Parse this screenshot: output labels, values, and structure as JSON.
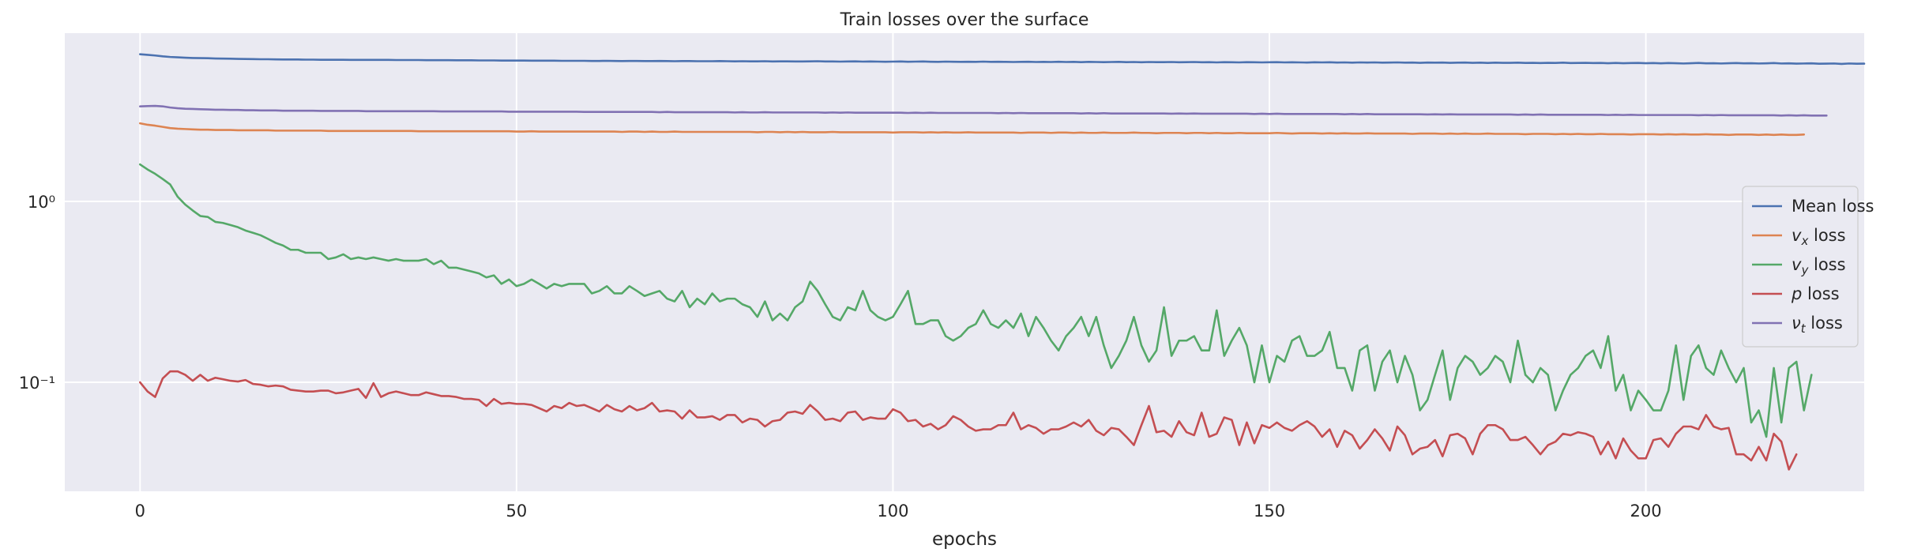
{
  "chart_data": {
    "type": "line",
    "title": "Train losses over the surface",
    "xlabel": "epochs",
    "ylabel": "",
    "xlim": [
      -10,
      229
    ],
    "ylim": [
      0.025,
      8.5
    ],
    "yscale": "log",
    "grid": true,
    "legend_position": "center-right",
    "x_ticks": [
      {
        "value": 0,
        "label": "0"
      },
      {
        "value": 50,
        "label": "50"
      },
      {
        "value": 100,
        "label": "100"
      },
      {
        "value": 150,
        "label": "150"
      },
      {
        "value": 200,
        "label": "200"
      }
    ],
    "y_ticks": [
      {
        "value": 0.1,
        "label": "10⁻¹"
      },
      {
        "value": 1,
        "label": "10⁰"
      }
    ],
    "series": [
      {
        "name": "Mean loss",
        "color": "#4c72b0",
        "values": [
          6.5,
          6.45,
          6.4,
          6.33,
          6.28,
          6.25,
          6.22,
          6.2,
          6.19,
          6.18,
          6.16,
          6.15,
          6.14,
          6.13,
          6.12,
          6.11,
          6.1,
          6.1,
          6.09,
          6.08,
          6.08,
          6.08,
          6.07,
          6.07,
          6.06,
          6.06,
          6.06,
          6.06,
          6.05,
          6.05,
          6.05,
          6.05,
          6.05,
          6.05,
          6.04,
          6.04,
          6.04,
          6.04,
          6.03,
          6.03,
          6.03,
          6.03,
          6.02,
          6.02,
          6.02,
          6.01,
          6.01,
          6.01,
          6.0,
          6.0,
          6.0,
          6.0,
          5.99,
          5.99,
          5.99,
          5.99,
          5.98,
          5.98,
          5.98,
          5.98,
          5.97,
          5.97,
          5.98,
          5.97,
          5.96,
          5.97,
          5.97,
          5.96,
          5.96,
          5.97,
          5.96,
          5.95,
          5.96,
          5.96,
          5.95,
          5.95,
          5.95,
          5.96,
          5.95,
          5.94,
          5.95,
          5.94,
          5.94,
          5.95,
          5.93,
          5.94,
          5.94,
          5.93,
          5.93,
          5.94,
          5.95,
          5.93,
          5.93,
          5.92,
          5.93,
          5.94,
          5.92,
          5.93,
          5.92,
          5.91,
          5.92,
          5.93,
          5.91,
          5.92,
          5.93,
          5.91,
          5.9,
          5.92,
          5.91,
          5.9,
          5.91,
          5.9,
          5.92,
          5.9,
          5.91,
          5.9,
          5.89,
          5.9,
          5.91,
          5.89,
          5.9,
          5.89,
          5.91,
          5.89,
          5.9,
          5.88,
          5.9,
          5.89,
          5.88,
          5.89,
          5.9,
          5.88,
          5.89,
          5.87,
          5.89,
          5.88,
          5.88,
          5.89,
          5.87,
          5.88,
          5.89,
          5.87,
          5.88,
          5.86,
          5.88,
          5.87,
          5.86,
          5.88,
          5.87,
          5.86,
          5.87,
          5.88,
          5.86,
          5.87,
          5.86,
          5.85,
          5.87,
          5.86,
          5.87,
          5.85,
          5.86,
          5.84,
          5.86,
          5.85,
          5.86,
          5.84,
          5.85,
          5.86,
          5.84,
          5.85,
          5.83,
          5.85,
          5.84,
          5.85,
          5.83,
          5.84,
          5.85,
          5.83,
          5.84,
          5.82,
          5.84,
          5.83,
          5.83,
          5.84,
          5.82,
          5.83,
          5.81,
          5.83,
          5.82,
          5.84,
          5.81,
          5.82,
          5.83,
          5.81,
          5.82,
          5.8,
          5.82,
          5.8,
          5.81,
          5.82,
          5.8,
          5.81,
          5.79,
          5.81,
          5.8,
          5.78,
          5.8,
          5.82,
          5.79,
          5.8,
          5.78,
          5.8,
          5.81,
          5.79,
          5.8,
          5.78,
          5.79,
          5.81,
          5.78,
          5.79,
          5.77,
          5.78,
          5.79,
          5.76,
          5.77,
          5.78,
          5.75,
          5.78,
          5.76,
          5.77
        ]
      },
      {
        "name": "v_x loss",
        "label_main": "v",
        "label_sub": "x",
        "label_suffix": " loss",
        "color": "#dd8452",
        "values": [
          2.7,
          2.65,
          2.62,
          2.58,
          2.54,
          2.52,
          2.51,
          2.5,
          2.49,
          2.49,
          2.48,
          2.48,
          2.48,
          2.47,
          2.47,
          2.47,
          2.47,
          2.47,
          2.46,
          2.46,
          2.46,
          2.46,
          2.46,
          2.46,
          2.46,
          2.45,
          2.45,
          2.45,
          2.45,
          2.45,
          2.45,
          2.45,
          2.45,
          2.45,
          2.45,
          2.45,
          2.45,
          2.44,
          2.44,
          2.44,
          2.44,
          2.44,
          2.44,
          2.44,
          2.44,
          2.44,
          2.44,
          2.44,
          2.44,
          2.44,
          2.43,
          2.43,
          2.44,
          2.43,
          2.43,
          2.43,
          2.43,
          2.43,
          2.43,
          2.43,
          2.43,
          2.43,
          2.43,
          2.43,
          2.42,
          2.43,
          2.43,
          2.42,
          2.43,
          2.42,
          2.42,
          2.43,
          2.42,
          2.42,
          2.42,
          2.42,
          2.42,
          2.42,
          2.42,
          2.42,
          2.42,
          2.42,
          2.41,
          2.42,
          2.42,
          2.41,
          2.42,
          2.41,
          2.42,
          2.41,
          2.41,
          2.41,
          2.42,
          2.41,
          2.41,
          2.41,
          2.41,
          2.41,
          2.41,
          2.41,
          2.4,
          2.41,
          2.41,
          2.41,
          2.4,
          2.41,
          2.4,
          2.41,
          2.4,
          2.4,
          2.41,
          2.4,
          2.4,
          2.4,
          2.4,
          2.4,
          2.4,
          2.39,
          2.4,
          2.4,
          2.4,
          2.39,
          2.4,
          2.4,
          2.39,
          2.4,
          2.39,
          2.39,
          2.4,
          2.39,
          2.39,
          2.39,
          2.4,
          2.39,
          2.39,
          2.38,
          2.39,
          2.39,
          2.39,
          2.38,
          2.39,
          2.39,
          2.38,
          2.39,
          2.38,
          2.38,
          2.39,
          2.38,
          2.38,
          2.38,
          2.38,
          2.39,
          2.38,
          2.37,
          2.38,
          2.38,
          2.38,
          2.37,
          2.38,
          2.37,
          2.38,
          2.37,
          2.37,
          2.38,
          2.37,
          2.37,
          2.37,
          2.37,
          2.37,
          2.36,
          2.37,
          2.37,
          2.37,
          2.36,
          2.37,
          2.36,
          2.37,
          2.36,
          2.36,
          2.37,
          2.36,
          2.36,
          2.36,
          2.36,
          2.35,
          2.36,
          2.36,
          2.36,
          2.35,
          2.36,
          2.35,
          2.36,
          2.35,
          2.35,
          2.36,
          2.35,
          2.35,
          2.35,
          2.34,
          2.35,
          2.35,
          2.35,
          2.34,
          2.35,
          2.34,
          2.35,
          2.34,
          2.34,
          2.35,
          2.34,
          2.34,
          2.33,
          2.34,
          2.34,
          2.34,
          2.33,
          2.34,
          2.33,
          2.34,
          2.33,
          2.33,
          2.34
        ]
      },
      {
        "name": "v_y loss",
        "label_main": "v",
        "label_sub": "y",
        "label_suffix": " loss",
        "color": "#55a868",
        "values": [
          1.6,
          1.5,
          1.42,
          1.33,
          1.24,
          1.06,
          0.96,
          0.89,
          0.83,
          0.82,
          0.77,
          0.76,
          0.74,
          0.72,
          0.69,
          0.67,
          0.65,
          0.62,
          0.59,
          0.57,
          0.54,
          0.54,
          0.52,
          0.52,
          0.52,
          0.48,
          0.49,
          0.51,
          0.48,
          0.49,
          0.48,
          0.49,
          0.48,
          0.47,
          0.48,
          0.47,
          0.47,
          0.47,
          0.48,
          0.45,
          0.47,
          0.43,
          0.43,
          0.42,
          0.41,
          0.4,
          0.38,
          0.39,
          0.35,
          0.37,
          0.34,
          0.35,
          0.37,
          0.35,
          0.33,
          0.35,
          0.34,
          0.35,
          0.35,
          0.35,
          0.31,
          0.32,
          0.34,
          0.31,
          0.31,
          0.34,
          0.32,
          0.3,
          0.31,
          0.32,
          0.29,
          0.28,
          0.32,
          0.26,
          0.29,
          0.27,
          0.31,
          0.28,
          0.29,
          0.29,
          0.27,
          0.26,
          0.23,
          0.28,
          0.22,
          0.24,
          0.22,
          0.26,
          0.28,
          0.36,
          0.32,
          0.27,
          0.23,
          0.22,
          0.26,
          0.25,
          0.32,
          0.25,
          0.23,
          0.22,
          0.23,
          0.27,
          0.32,
          0.21,
          0.21,
          0.22,
          0.22,
          0.18,
          0.17,
          0.18,
          0.2,
          0.21,
          0.25,
          0.21,
          0.2,
          0.22,
          0.2,
          0.24,
          0.18,
          0.23,
          0.2,
          0.17,
          0.15,
          0.18,
          0.2,
          0.23,
          0.18,
          0.23,
          0.16,
          0.12,
          0.14,
          0.17,
          0.23,
          0.16,
          0.13,
          0.15,
          0.26,
          0.14,
          0.17,
          0.17,
          0.18,
          0.15,
          0.15,
          0.25,
          0.14,
          0.17,
          0.2,
          0.16,
          0.1,
          0.16,
          0.1,
          0.14,
          0.13,
          0.17,
          0.18,
          0.14,
          0.14,
          0.15,
          0.19,
          0.12,
          0.12,
          0.09,
          0.15,
          0.16,
          0.09,
          0.13,
          0.15,
          0.1,
          0.14,
          0.11,
          0.07,
          0.08,
          0.11,
          0.15,
          0.08,
          0.12,
          0.14,
          0.13,
          0.11,
          0.12,
          0.14,
          0.13,
          0.1,
          0.17,
          0.11,
          0.1,
          0.12,
          0.11,
          0.07,
          0.09,
          0.11,
          0.12,
          0.14,
          0.15,
          0.12,
          0.18,
          0.09,
          0.11,
          0.07,
          0.09,
          0.08,
          0.07,
          0.07,
          0.09,
          0.16,
          0.08,
          0.14,
          0.16,
          0.12,
          0.11,
          0.15,
          0.12,
          0.1,
          0.12,
          0.06,
          0.07,
          0.05,
          0.12,
          0.06,
          0.12,
          0.13,
          0.07,
          0.11
        ]
      },
      {
        "name": "p loss",
        "label_main": "p",
        "label_sub": "",
        "label_suffix": " loss",
        "color": "#c44e52",
        "values": [
          0.1,
          0.089,
          0.083,
          0.105,
          0.115,
          0.115,
          0.11,
          0.102,
          0.11,
          0.102,
          0.106,
          0.104,
          0.102,
          0.101,
          0.103,
          0.098,
          0.097,
          0.095,
          0.096,
          0.095,
          0.091,
          0.09,
          0.089,
          0.089,
          0.09,
          0.09,
          0.087,
          0.088,
          0.09,
          0.092,
          0.082,
          0.099,
          0.083,
          0.087,
          0.089,
          0.087,
          0.085,
          0.085,
          0.088,
          0.086,
          0.084,
          0.084,
          0.083,
          0.081,
          0.081,
          0.08,
          0.074,
          0.081,
          0.076,
          0.077,
          0.076,
          0.076,
          0.075,
          0.072,
          0.069,
          0.074,
          0.072,
          0.077,
          0.074,
          0.075,
          0.072,
          0.069,
          0.075,
          0.071,
          0.069,
          0.074,
          0.07,
          0.072,
          0.077,
          0.069,
          0.07,
          0.069,
          0.063,
          0.07,
          0.064,
          0.064,
          0.065,
          0.062,
          0.066,
          0.066,
          0.06,
          0.063,
          0.062,
          0.057,
          0.061,
          0.062,
          0.068,
          0.069,
          0.067,
          0.075,
          0.069,
          0.062,
          0.063,
          0.061,
          0.068,
          0.069,
          0.062,
          0.064,
          0.063,
          0.063,
          0.071,
          0.068,
          0.061,
          0.062,
          0.057,
          0.059,
          0.055,
          0.058,
          0.065,
          0.062,
          0.057,
          0.054,
          0.055,
          0.055,
          0.058,
          0.058,
          0.068,
          0.055,
          0.058,
          0.056,
          0.052,
          0.055,
          0.055,
          0.057,
          0.06,
          0.057,
          0.062,
          0.054,
          0.051,
          0.056,
          0.055,
          0.05,
          0.045,
          0.058,
          0.074,
          0.053,
          0.054,
          0.05,
          0.061,
          0.053,
          0.051,
          0.068,
          0.05,
          0.052,
          0.064,
          0.062,
          0.045,
          0.06,
          0.046,
          0.058,
          0.056,
          0.06,
          0.056,
          0.054,
          0.058,
          0.061,
          0.057,
          0.05,
          0.055,
          0.044,
          0.054,
          0.051,
          0.043,
          0.048,
          0.055,
          0.049,
          0.042,
          0.057,
          0.051,
          0.04,
          0.043,
          0.044,
          0.048,
          0.039,
          0.051,
          0.052,
          0.049,
          0.04,
          0.052,
          0.058,
          0.058,
          0.055,
          0.048,
          0.048,
          0.05,
          0.045,
          0.04,
          0.045,
          0.047,
          0.052,
          0.051,
          0.053,
          0.052,
          0.05,
          0.04,
          0.047,
          0.038,
          0.049,
          0.042,
          0.038,
          0.038,
          0.048,
          0.049,
          0.044,
          0.052,
          0.057,
          0.057,
          0.055,
          0.066,
          0.057,
          0.055,
          0.056,
          0.04,
          0.04,
          0.037,
          0.044,
          0.037,
          0.052,
          0.047,
          0.033,
          0.04
        ]
      },
      {
        "name": "nu_t loss",
        "label_main": "ν",
        "label_sub": "t",
        "label_suffix": " loss",
        "color": "#8172b3",
        "values": [
          3.35,
          3.36,
          3.37,
          3.35,
          3.3,
          3.27,
          3.25,
          3.24,
          3.23,
          3.22,
          3.21,
          3.21,
          3.2,
          3.2,
          3.19,
          3.19,
          3.18,
          3.18,
          3.18,
          3.17,
          3.17,
          3.17,
          3.17,
          3.17,
          3.16,
          3.16,
          3.16,
          3.16,
          3.16,
          3.16,
          3.15,
          3.15,
          3.15,
          3.15,
          3.15,
          3.15,
          3.15,
          3.15,
          3.15,
          3.15,
          3.14,
          3.14,
          3.14,
          3.14,
          3.14,
          3.14,
          3.14,
          3.14,
          3.14,
          3.13,
          3.13,
          3.13,
          3.13,
          3.13,
          3.13,
          3.13,
          3.13,
          3.13,
          3.13,
          3.12,
          3.12,
          3.12,
          3.12,
          3.12,
          3.12,
          3.12,
          3.12,
          3.12,
          3.12,
          3.11,
          3.12,
          3.11,
          3.11,
          3.11,
          3.11,
          3.11,
          3.11,
          3.11,
          3.11,
          3.1,
          3.11,
          3.1,
          3.1,
          3.11,
          3.1,
          3.1,
          3.1,
          3.1,
          3.1,
          3.1,
          3.1,
          3.09,
          3.1,
          3.09,
          3.1,
          3.09,
          3.09,
          3.09,
          3.09,
          3.09,
          3.09,
          3.09,
          3.08,
          3.09,
          3.08,
          3.09,
          3.08,
          3.08,
          3.08,
          3.08,
          3.08,
          3.08,
          3.08,
          3.08,
          3.07,
          3.08,
          3.07,
          3.08,
          3.07,
          3.07,
          3.07,
          3.07,
          3.07,
          3.07,
          3.07,
          3.06,
          3.07,
          3.06,
          3.07,
          3.06,
          3.06,
          3.06,
          3.06,
          3.06,
          3.06,
          3.06,
          3.06,
          3.05,
          3.06,
          3.05,
          3.06,
          3.05,
          3.05,
          3.05,
          3.05,
          3.05,
          3.05,
          3.05,
          3.04,
          3.05,
          3.04,
          3.05,
          3.04,
          3.04,
          3.04,
          3.04,
          3.04,
          3.04,
          3.04,
          3.04,
          3.03,
          3.04,
          3.03,
          3.04,
          3.03,
          3.03,
          3.03,
          3.03,
          3.03,
          3.03,
          3.03,
          3.02,
          3.03,
          3.02,
          3.03,
          3.02,
          3.02,
          3.02,
          3.02,
          3.02,
          3.02,
          3.02,
          3.02,
          3.01,
          3.02,
          3.01,
          3.02,
          3.01,
          3.01,
          3.01,
          3.01,
          3.01,
          3.01,
          3.01,
          3.01,
          3.0,
          3.01,
          3.0,
          3.01,
          3.0,
          3.0,
          3.0,
          3.0,
          3.0,
          3.0,
          3.0,
          3.0,
          2.99,
          3.0,
          2.99,
          3.0,
          2.99,
          2.99,
          2.99,
          2.99,
          2.99,
          2.99,
          2.99,
          2.98,
          2.99,
          2.98,
          2.99,
          2.98,
          2.98,
          2.98
        ]
      }
    ]
  }
}
